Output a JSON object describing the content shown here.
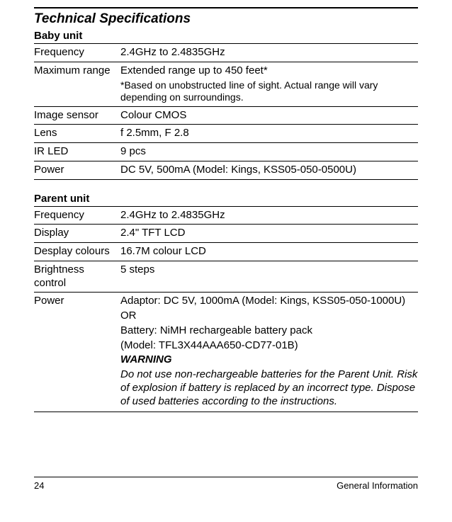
{
  "title": "Technical Specifications",
  "baby": {
    "heading": "Baby unit",
    "rows": {
      "freq_label": "Frequency",
      "freq_value": "2.4GHz to 2.4835GHz",
      "range_label": "Maximum range",
      "range_value": "Extended range up to 450 feet*",
      "range_note": "*Based on unobstructed line of sight. Actual range will vary depending on surroundings.",
      "sensor_label": "Image sensor",
      "sensor_value": "Colour CMOS",
      "lens_label": "Lens",
      "lens_value": "f 2.5mm, F 2.8",
      "irled_label": "IR LED",
      "irled_value": "9 pcs",
      "power_label": "Power",
      "power_value": "DC 5V, 500mA (Model: Kings, KSS05-050-0500U)"
    }
  },
  "parent": {
    "heading": "Parent unit",
    "rows": {
      "freq_label": "Frequency",
      "freq_value": "2.4GHz to 2.4835GHz",
      "display_label": "Display",
      "display_value": "2.4\" TFT LCD",
      "colours_label": "Desplay colours",
      "colours_value": "16.7M colour LCD",
      "bright_label": "Brightness control",
      "bright_value": "5 steps",
      "power_label": "Power",
      "power_adaptor": "Adaptor: DC 5V, 1000mA (Model: Kings, KSS05-050-1000U)",
      "power_or": "OR",
      "power_battery": "Battery: NiMH rechargeable battery pack",
      "power_battery_model": "(Model: TFL3X44AAA650-CD77-01B)",
      "warning_head": "WARNING",
      "warning_body": "Do not use non-rechargeable batteries for the Parent Unit. Risk of explosion if battery is replaced by an incorrect type. Dispose of used batteries according to the instructions."
    }
  },
  "footer": {
    "page": "24",
    "section": "General Information"
  }
}
